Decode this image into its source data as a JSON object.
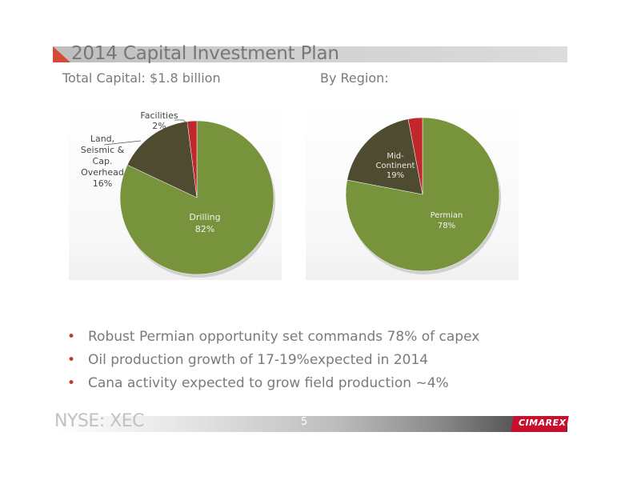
{
  "title": "2014 Capital Investment Plan",
  "subtitle_left": "Total Capital: $1.8 billion",
  "subtitle_right": "By Region:",
  "colors": {
    "green": "#77933c",
    "brown": "#4e4b30",
    "red": "#c0282d",
    "accent": "#d64b35"
  },
  "chart_data": [
    {
      "type": "pie",
      "slices": [
        {
          "label": "Drilling",
          "value": 82,
          "display": "82%",
          "color": "#77933c"
        },
        {
          "label": "Land, Seismic & Cap. Overhead",
          "value": 16,
          "display": "16%",
          "color": "#4e4b30"
        },
        {
          "label": "Facilities",
          "value": 2,
          "display": "2%",
          "color": "#c0282d"
        }
      ]
    },
    {
      "type": "pie",
      "slices": [
        {
          "label": "Permian",
          "value": 78,
          "display": "78%",
          "color": "#77933c"
        },
        {
          "label": "Mid-Continent",
          "value": 19,
          "display": "19%",
          "color": "#4e4b30"
        },
        {
          "label": "",
          "value": 3,
          "display": "",
          "color": "#c0282d"
        }
      ]
    }
  ],
  "left_labels": {
    "facilities_name": "Facilities",
    "facilities_value": "2%",
    "land_lines": [
      "Land,",
      "Seismic &",
      "Cap.",
      "Overhead"
    ],
    "land_value": "16%",
    "drilling_name": "Drilling",
    "drilling_value": "82%"
  },
  "right_labels": {
    "mid_lines": [
      "Mid-",
      "Continent"
    ],
    "mid_value": "19%",
    "permian_name": "Permian",
    "permian_value": "78%"
  },
  "bullets": [
    "Robust Permian opportunity set commands 78% of capex",
    "Oil production growth of 17-19%expected in 2014",
    "Cana activity expected to grow field production ~4%"
  ],
  "footer": {
    "ticker": "NYSE: XEC",
    "page_number": "5",
    "logo": "CIMAREX"
  }
}
